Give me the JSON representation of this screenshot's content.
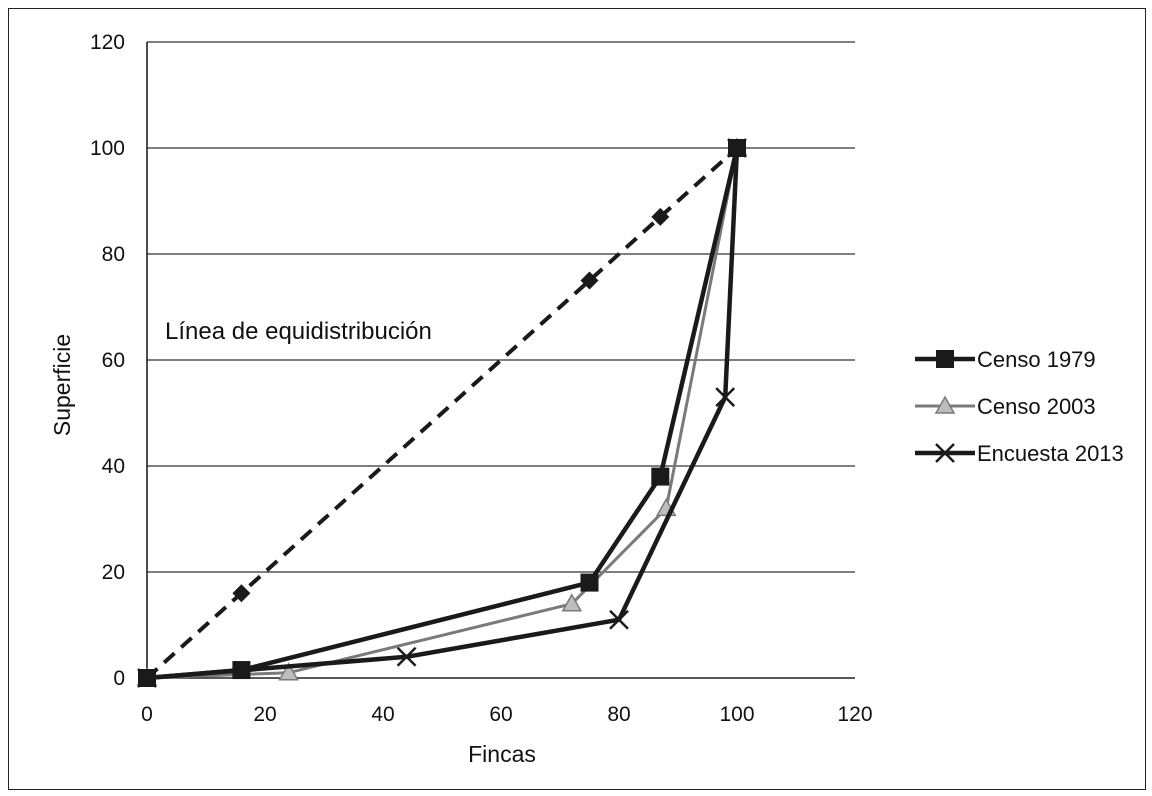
{
  "chart_data": {
    "type": "line",
    "title": "",
    "xlabel": "Fincas",
    "ylabel": "Superficie",
    "xlim": [
      0,
      120
    ],
    "ylim": [
      0,
      120
    ],
    "xticks": [
      0,
      20,
      40,
      60,
      80,
      100,
      120
    ],
    "yticks": [
      0,
      20,
      40,
      60,
      80,
      100,
      120
    ],
    "grid": "horizontal",
    "legend_position": "right",
    "annotation": "Línea de equidistribución",
    "equidistribution": {
      "x": [
        0,
        16,
        75,
        87,
        100
      ],
      "y": [
        0,
        16,
        75,
        87,
        100
      ],
      "color": "#1a1a1a"
    },
    "series": [
      {
        "name": "Censo 1979",
        "marker": "square",
        "color": "#1a1a1a",
        "x": [
          0,
          16,
          75,
          87,
          100
        ],
        "y": [
          0,
          1.5,
          18,
          38,
          100
        ]
      },
      {
        "name": "Censo 2003",
        "marker": "triangle",
        "color": "#7a7a7a",
        "x": [
          0,
          24,
          72,
          88,
          100
        ],
        "y": [
          0,
          1,
          14,
          32,
          100
        ]
      },
      {
        "name": "Encuesta 2013",
        "marker": "x",
        "color": "#1a1a1a",
        "x": [
          0,
          44,
          80,
          98,
          100
        ],
        "y": [
          0,
          4,
          11,
          53,
          100
        ]
      }
    ]
  }
}
